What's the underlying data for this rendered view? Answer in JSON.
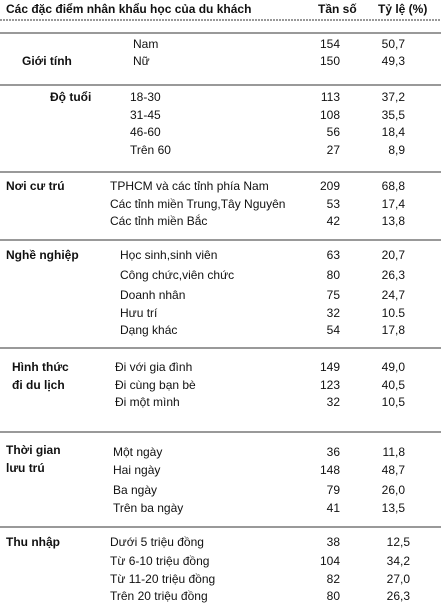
{
  "table": {
    "header": [
      "Các đặc điểm nhân khẩu học của du khách",
      "Tần số",
      "Tỷ lệ (%)"
    ],
    "groups": [
      {
        "label": [
          "Giới tính"
        ],
        "rows": [
          [
            "Nam",
            "154",
            "50,7"
          ],
          [
            "Nữ",
            "150",
            "49,3"
          ]
        ]
      },
      {
        "label": [
          "Độ tuổi"
        ],
        "rows": [
          [
            "18-30",
            "113",
            "37,2"
          ],
          [
            "31-45",
            "108",
            "35,5"
          ],
          [
            "46-60",
            "56",
            "18,4"
          ],
          [
            "Trên 60",
            "27",
            "8,9"
          ]
        ]
      },
      {
        "label": [
          "Nơi cư trú"
        ],
        "rows": [
          [
            "TPHCM và các tỉnh phía Nam",
            "209",
            "68,8"
          ],
          [
            "Các tỉnh miền Trung,Tây Nguyên",
            "53",
            "17,4"
          ],
          [
            "Các tỉnh miền Bắc",
            "42",
            "13,8"
          ]
        ]
      },
      {
        "label": [
          "Nghề nghiệp"
        ],
        "rows": [
          [
            "Học sinh,sinh viên",
            "63",
            "20,7"
          ],
          [
            "Công chức,viên chức",
            "80",
            "26,3"
          ],
          [
            "Doanh nhân",
            "75",
            "24,7"
          ],
          [
            "Hưu trí",
            "32",
            "10.5"
          ],
          [
            "Dạng khác",
            "54",
            "17,8"
          ]
        ]
      },
      {
        "label": [
          "Hình thức",
          "đi du lịch"
        ],
        "rows": [
          [
            "Đi với gia đình",
            "149",
            "49,0"
          ],
          [
            "Đi cùng bạn bè",
            "123",
            "40,5"
          ],
          [
            "Đi một mình",
            "32",
            "10,5"
          ]
        ]
      },
      {
        "label": [
          "Thời gian",
          "lưu trú"
        ],
        "rows": [
          [
            "Một ngày",
            "36",
            "11,8"
          ],
          [
            "Hai ngày",
            "148",
            "48,7"
          ],
          [
            "Ba ngày",
            "79",
            "26,0"
          ],
          [
            "Trên ba ngày",
            "41",
            "13,5"
          ]
        ]
      },
      {
        "label": [
          "Thu nhập"
        ],
        "rows": [
          [
            "Dưới 5 triệu đồng",
            "38",
            "12,5"
          ],
          [
            "Từ 6-10 triệu đồng",
            "104",
            "34,2"
          ],
          [
            "Từ 11-20 triệu đồng",
            "82",
            "27,0"
          ],
          [
            "Trên 20 triệu đồng",
            "80",
            "26,3"
          ]
        ]
      }
    ]
  }
}
